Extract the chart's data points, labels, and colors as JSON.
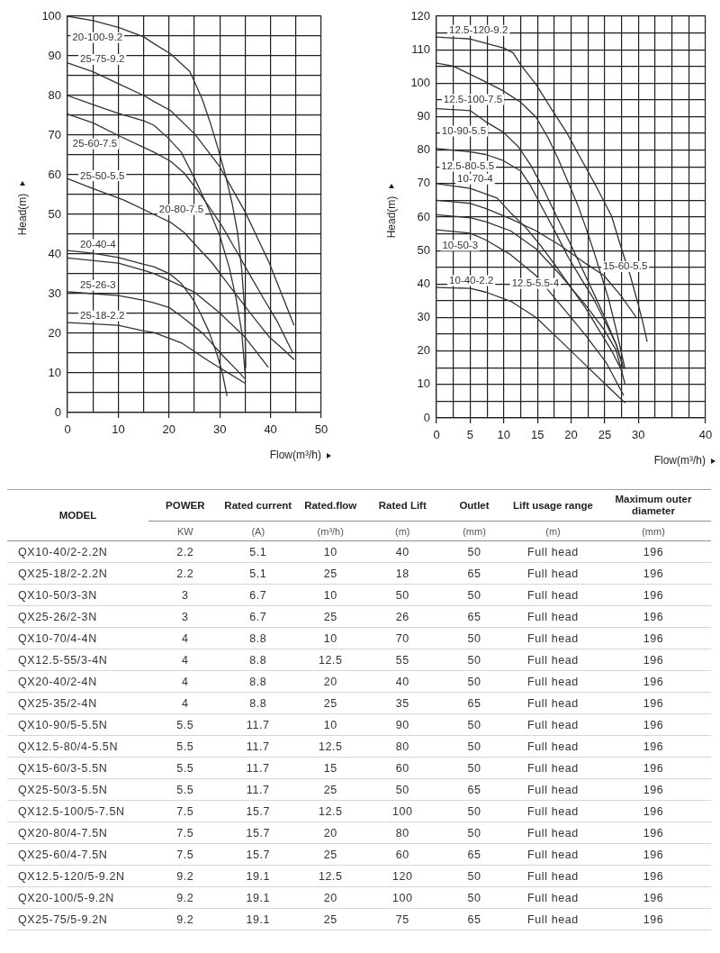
{
  "chart_data": [
    {
      "type": "line",
      "xlabel": "Flow(m³/h)",
      "ylabel": "Head(m)",
      "xlim": [
        0,
        50
      ],
      "ylim": [
        0,
        100
      ],
      "xticks": [
        0,
        {
          "value": 5,
          "label": null
        },
        10,
        {
          "value": 15,
          "label": null
        },
        20,
        {
          "value": 25,
          "label": null
        },
        30,
        {
          "value": 35,
          "label": null
        },
        40,
        {
          "value": 45,
          "label": null
        },
        50
      ],
      "yticks": [
        0,
        {
          "value": 5,
          "label": null
        },
        10,
        {
          "value": 15,
          "label": null
        },
        20,
        {
          "value": 25,
          "label": null
        },
        30,
        {
          "value": 35,
          "label": null
        },
        40,
        {
          "value": 45,
          "label": null
        },
        50,
        {
          "value": 55,
          "label": null
        },
        60,
        {
          "value": 65,
          "label": null
        },
        70,
        {
          "value": 75,
          "label": null
        },
        80,
        {
          "value": 85,
          "label": null
        },
        90,
        {
          "value": 95,
          "label": null
        },
        100
      ],
      "grid": true,
      "marker": "none",
      "series": [
        {
          "name": "20-100-9.2",
          "color": "#333333",
          "x": [
            0,
            5,
            10,
            15,
            17,
            20.3,
            24.1,
            26.5,
            28.1,
            29.7,
            31.1,
            32.4,
            33.5,
            34.3,
            34.9,
            35.1
          ],
          "values": [
            100,
            98.9,
            97.2,
            94.8,
            93.1,
            90.5,
            86,
            79.2,
            73.2,
            66.4,
            60,
            52.9,
            45.4,
            36.4,
            25.8,
            11.5
          ]
        },
        {
          "name": "25-75-9.2",
          "color": "#333333",
          "x": [
            0,
            5,
            10,
            15,
            17,
            20.3,
            25.1,
            30,
            35,
            39.7,
            44.6
          ],
          "values": [
            88.2,
            86,
            83,
            80,
            78.5,
            76.2,
            70.2,
            62,
            50.6,
            37.9,
            22.1
          ]
        },
        {
          "name": "20-80-7.5",
          "color": "#333333",
          "x": [
            0,
            5,
            10,
            15,
            17,
            19.7,
            22.4,
            25.1,
            27.8,
            30,
            31.9,
            33.2,
            34.3,
            35
          ],
          "values": [
            80,
            77.7,
            75.5,
            73.6,
            72.5,
            69.4,
            65.7,
            58.9,
            51.4,
            44.6,
            36.4,
            28.8,
            20.6,
            9.5
          ]
        },
        {
          "name": "25-60-7.5",
          "color": "#333333",
          "x": [
            0,
            5,
            10.5,
            17,
            20.3,
            23,
            25.7,
            27.8,
            30.5,
            33.2,
            35.9,
            38.6,
            41.4,
            44.3
          ],
          "values": [
            75.3,
            73.1,
            69.6,
            65.7,
            63.4,
            60.4,
            55.9,
            52.1,
            46.9,
            40.9,
            34.8,
            28.8,
            22.8,
            15.3
          ]
        },
        {
          "name": "25-50-5.5",
          "color": "#333333",
          "x": [
            0,
            5,
            11.1,
            17,
            20.3,
            23,
            25.7,
            28.4,
            31.1,
            33.8,
            36.5,
            39.7,
            42.4,
            44.6
          ],
          "values": [
            59,
            56.5,
            53.6,
            50,
            48,
            45.4,
            41.6,
            37.9,
            33.3,
            28.8,
            24.3,
            19.1,
            16.1,
            13.4
          ]
        },
        {
          "name": "20-40-4",
          "color": "#333333",
          "x": [
            0,
            5,
            10,
            15,
            17,
            20,
            22.4,
            24.6,
            26.2,
            27.8,
            29.5,
            30.5,
            31.4
          ],
          "values": [
            40.9,
            40.2,
            39.1,
            37.4,
            36.8,
            35.1,
            32.6,
            28.8,
            25,
            20.6,
            14.5,
            10,
            4.3
          ]
        },
        {
          "color": "#333333",
          "x": [
            0,
            10,
            15,
            17,
            20,
            25.1,
            30,
            34.9,
            39.5
          ],
          "values": [
            39,
            37.7,
            35.9,
            35.1,
            33.4,
            30.3,
            25.1,
            19.1,
            11.5
          ]
        },
        {
          "name": "25-26-3",
          "color": "#333333",
          "x": [
            0,
            5,
            10,
            15,
            17,
            20,
            22.4,
            26.8,
            30.5,
            35
          ],
          "values": [
            30.5,
            30,
            29.5,
            28.3,
            27.7,
            26.5,
            24.3,
            19.8,
            14.5,
            8.5
          ]
        },
        {
          "name": "25-18-2.2",
          "color": "#333333",
          "x": [
            0,
            10,
            15,
            17,
            22.4,
            27.8,
            35
          ],
          "values": [
            22.7,
            22,
            20.6,
            20.2,
            17.6,
            13,
            7.4
          ]
        }
      ]
    },
    {
      "type": "line",
      "xlabel": "Flow(m³/h)",
      "ylabel": "Head(m)",
      "xlim": [
        0,
        40
      ],
      "ylim": [
        0,
        120
      ],
      "xticks": [
        0,
        {
          "value": 2.5,
          "label": null
        },
        5,
        {
          "value": 7.5,
          "label": null
        },
        10,
        {
          "value": 12.5,
          "label": null
        },
        15,
        {
          "value": 17.5,
          "label": null
        },
        20,
        {
          "value": 22.5,
          "label": null
        },
        25,
        {
          "value": 27.5,
          "label": null
        },
        30,
        {
          "value": 32.5,
          "label": null
        },
        {
          "value": 35,
          "label": null
        },
        {
          "value": 37.5,
          "label": null
        },
        40
      ],
      "yticks": [
        0,
        {
          "value": 5,
          "label": null
        },
        10,
        {
          "value": 15,
          "label": null
        },
        20,
        {
          "value": 25,
          "label": null
        },
        30,
        {
          "value": 35,
          "label": null
        },
        40,
        {
          "value": 45,
          "label": null
        },
        50,
        {
          "value": 55,
          "label": null
        },
        60,
        {
          "value": 65,
          "label": null
        },
        70,
        {
          "value": 75,
          "label": null
        },
        80,
        {
          "value": 85,
          "label": null
        },
        90,
        {
          "value": 95,
          "label": null
        },
        100,
        {
          "value": 105,
          "label": null
        },
        110,
        {
          "value": 115,
          "label": null
        },
        120
      ],
      "grid": true,
      "marker": "none",
      "series": [
        {
          "name": "12.5-120-9.2",
          "color": "#333333",
          "x": [
            0,
            5,
            10,
            11.4,
            12.5,
            14.8,
            17,
            19.3,
            21.5,
            23.7,
            26,
            27.5,
            28.8,
            29.9,
            30.6,
            31.3
          ],
          "values": [
            113.8,
            113.2,
            110.5,
            109,
            105.5,
            99.6,
            92.5,
            85.4,
            77.3,
            69.3,
            60.4,
            50.5,
            42.5,
            34.5,
            29.1,
            22.9
          ]
        },
        {
          "name": "12.5-100-7.5",
          "color": "#333333",
          "x": [
            0,
            2.5,
            7.3,
            9.9,
            12.5,
            14.8,
            16.6,
            18.1,
            19.6,
            21.1,
            22.2,
            23.4,
            24.5,
            25.6,
            26.7,
            27.5,
            28
          ],
          "values": [
            106,
            105.1,
            100.4,
            97.7,
            94.3,
            89.8,
            83.6,
            77.3,
            70.2,
            63,
            56.8,
            49.6,
            42.5,
            35.4,
            26.4,
            19.3,
            14.8
          ]
        },
        {
          "name": "10-90-5.5",
          "color": "#333333",
          "x": [
            0,
            5,
            7.3,
            9.9,
            12.2,
            14,
            15.9,
            17.8,
            19.6,
            21.5,
            23.4,
            25.2,
            26.7,
            27.8
          ],
          "values": [
            92.4,
            91.8,
            88.5,
            85.4,
            80.9,
            75.5,
            68.4,
            60.4,
            53.2,
            45.2,
            37.1,
            29.1,
            22,
            14.8
          ]
        },
        {
          "name": "12.5-80-5.5",
          "color": "#333333",
          "x": [
            0,
            5,
            7.3,
            9.9,
            12.5,
            14,
            15.9,
            17.8,
            19.6,
            21.5,
            23.4,
            25.2,
            26.7,
            27.6
          ],
          "values": [
            80.5,
            79.5,
            78.7,
            76.9,
            73.8,
            69.3,
            62.1,
            55,
            47.9,
            41.6,
            35.4,
            28.2,
            22,
            16.2
          ]
        },
        {
          "name": "10-70-4",
          "color": "#333333",
          "x": [
            0,
            5,
            9,
            11,
            13.3,
            15.5,
            17.8,
            20,
            22.2,
            24.1,
            26,
            27.6
          ],
          "values": [
            70,
            68.6,
            65.7,
            61.3,
            56.8,
            51.4,
            45.2,
            38.9,
            32.7,
            26.4,
            20.2,
            13.9
          ]
        },
        {
          "name": "15-60-5.5",
          "color": "#333333",
          "x": [
            0,
            5,
            7.3,
            11,
            14.8,
            18.5,
            22.2,
            24.9,
            27.5,
            29.7
          ],
          "values": [
            65,
            64.1,
            62.6,
            59.5,
            55.9,
            51.4,
            46.1,
            42.5,
            36.3,
            30
          ]
        },
        {
          "name": "12.5-5.5-4",
          "color": "#333333",
          "x": [
            0,
            5,
            7.3,
            11,
            14.8,
            18.5,
            22.2,
            24.9,
            26.7,
            28
          ],
          "values": [
            60.7,
            59.8,
            58.6,
            55.9,
            50.5,
            42.5,
            33.6,
            26.4,
            20.2,
            10.3
          ]
        },
        {
          "name": "10-50-3",
          "color": "#333333",
          "x": [
            0,
            5,
            7.3,
            11,
            14.8,
            18.5,
            22.2,
            25.2,
            27.8
          ],
          "values": [
            56.2,
            55.2,
            53.2,
            48.8,
            42.5,
            33.6,
            24.6,
            16.6,
            6.8
          ]
        },
        {
          "name": "10-40-2.2",
          "color": "#333333",
          "x": [
            0,
            5,
            7.3,
            11,
            14.8,
            18.5,
            22.2,
            25.2,
            28
          ],
          "values": [
            39,
            38.7,
            37.6,
            34.9,
            30,
            22.9,
            15.7,
            9.9,
            4.6
          ]
        }
      ]
    },
    {
      "type": "other",
      "annotations": [
        "MODEL",
        "KW",
        "(A)",
        "(m³/h)",
        "(m)",
        "(mm)",
        "(m)",
        "(mm)"
      ],
      "data_labels": true,
      "categories": [
        "QX10-40/2-2.2N",
        "QX25-18/2-2.2N",
        "QX10-50/3-3N",
        "QX25-26/2-3N",
        "QX10-70/4-4N",
        "QX12.5-55/3-4N",
        "QX20-40/2-4N",
        "QX25-35/2-4N",
        "QX10-90/5-5.5N",
        "QX12.5-80/4-5.5N",
        "QX15-60/3-5.5N",
        "QX25-50/3-5.5N",
        "QX12.5-100/5-7.5N",
        "QX20-80/4-7.5N",
        "QX25-60/4-7.5N",
        "QX12.5-120/5-9.2N",
        "QX20-100/5-9.2N",
        "QX25-75/5-9.2N"
      ],
      "series": [
        {
          "name": "POWER",
          "values": [
            2.2,
            2.2,
            3,
            3,
            4,
            4,
            4,
            4,
            5.5,
            5.5,
            5.5,
            5.5,
            7.5,
            7.5,
            7.5,
            9.2,
            9.2,
            9.2
          ]
        },
        {
          "name": "Rated current",
          "values": [
            5.1,
            5.1,
            6.7,
            6.7,
            8.8,
            8.8,
            8.8,
            8.8,
            11.7,
            11.7,
            11.7,
            11.7,
            15.7,
            15.7,
            15.7,
            19.1,
            19.1,
            19.1
          ]
        },
        {
          "name": "Rated.flow",
          "values": [
            10,
            25,
            10,
            25,
            10,
            12.5,
            20,
            25,
            10,
            12.5,
            15,
            25,
            12.5,
            20,
            25,
            12.5,
            20,
            25
          ]
        },
        {
          "name": "Rated Lift",
          "values": [
            40,
            18,
            50,
            26,
            70,
            55,
            40,
            35,
            90,
            80,
            60,
            50,
            100,
            80,
            60,
            120,
            100,
            75
          ]
        },
        {
          "name": "Outlet",
          "values": [
            50,
            65,
            50,
            65,
            50,
            50,
            50,
            65,
            50,
            50,
            50,
            65,
            50,
            50,
            65,
            50,
            50,
            65
          ]
        },
        {
          "name": "Lift usage range",
          "values": [
            null,
            null,
            null,
            null,
            null,
            null,
            null,
            null,
            null,
            null,
            null,
            null,
            null,
            null,
            null,
            null,
            null,
            null
          ],
          "value_labels": [
            "Full head",
            "Full head",
            "Full head",
            "Full head",
            "Full head",
            "Full head",
            "Full head",
            "Full head",
            "Full head",
            "Full head",
            "Full head",
            "Full head",
            "Full head",
            "Full head",
            "Full head",
            "Full head",
            "Full head",
            "Full head"
          ]
        },
        {
          "name": "Maximum outer diameter",
          "values": [
            196,
            196,
            196,
            196,
            196,
            196,
            196,
            196,
            196,
            196,
            196,
            196,
            196,
            196,
            196,
            196,
            196,
            196
          ]
        }
      ]
    }
  ]
}
